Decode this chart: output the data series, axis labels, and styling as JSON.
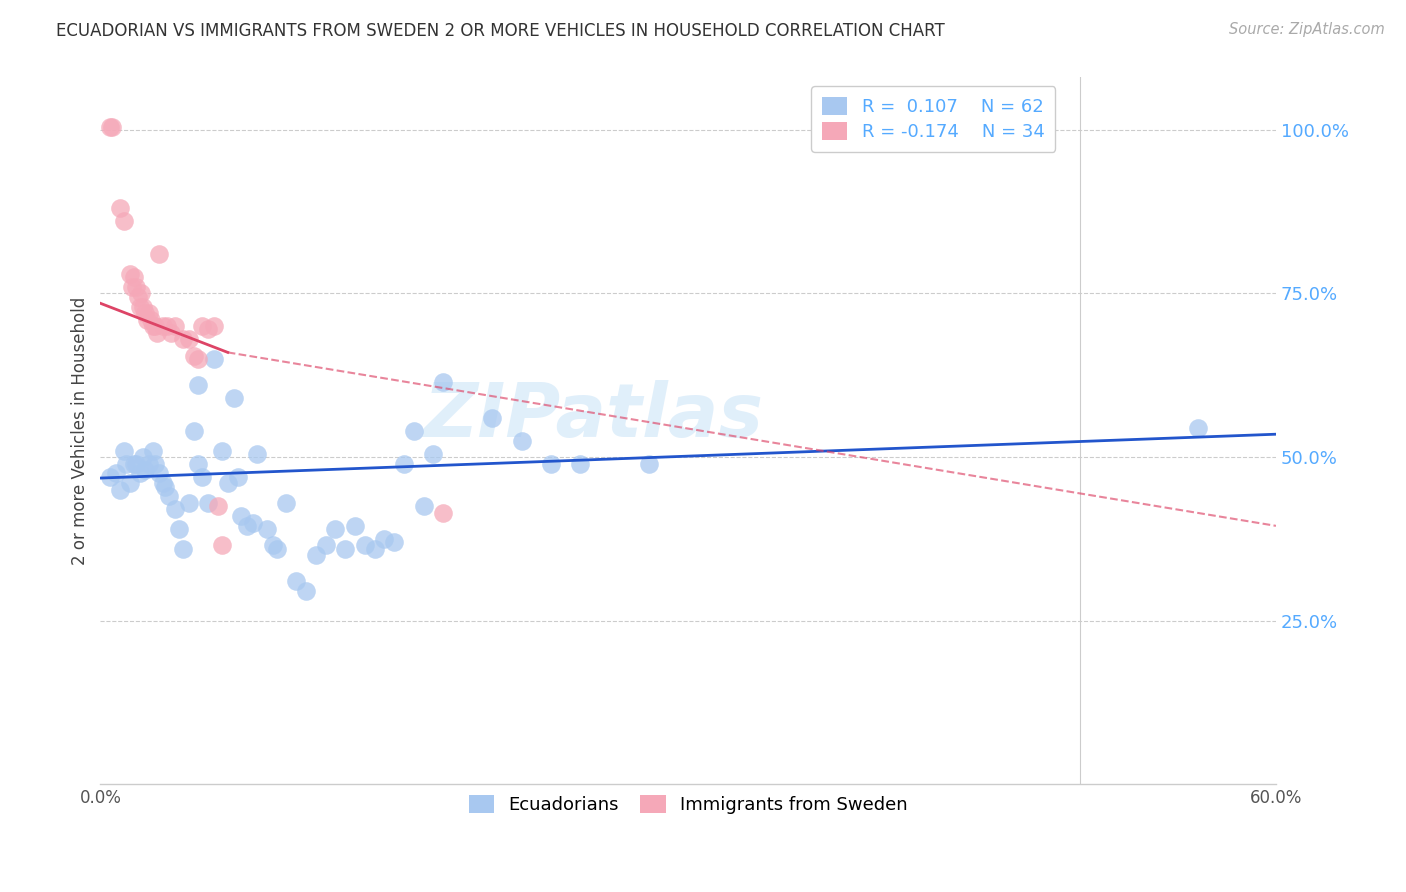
{
  "title": "ECUADORIAN VS IMMIGRANTS FROM SWEDEN 2 OR MORE VEHICLES IN HOUSEHOLD CORRELATION CHART",
  "source": "Source: ZipAtlas.com",
  "ylabel": "2 or more Vehicles in Household",
  "watermark": "ZIPatlas",
  "xlim": [
    0.0,
    0.6
  ],
  "ylim": [
    0.0,
    1.08
  ],
  "yticks": [
    0.0,
    0.25,
    0.5,
    0.75,
    1.0
  ],
  "ytick_labels": [
    "",
    "25.0%",
    "50.0%",
    "75.0%",
    "100.0%"
  ],
  "xticks": [
    0.0,
    0.1,
    0.2,
    0.3,
    0.4,
    0.5,
    0.6
  ],
  "xtick_labels": [
    "0.0%",
    "",
    "",
    "",
    "",
    "",
    "60.0%"
  ],
  "blue_color": "#A8C8F0",
  "pink_color": "#F5A8B8",
  "blue_line_color": "#2255CC",
  "pink_line_color": "#DD4466",
  "grid_color": "#CCCCCC",
  "right_tick_color": "#55AAFF",
  "blue_scatter": [
    [
      0.005,
      0.47
    ],
    [
      0.008,
      0.475
    ],
    [
      0.01,
      0.45
    ],
    [
      0.012,
      0.51
    ],
    [
      0.013,
      0.49
    ],
    [
      0.015,
      0.46
    ],
    [
      0.017,
      0.49
    ],
    [
      0.018,
      0.49
    ],
    [
      0.02,
      0.475
    ],
    [
      0.022,
      0.5
    ],
    [
      0.023,
      0.48
    ],
    [
      0.025,
      0.49
    ],
    [
      0.027,
      0.51
    ],
    [
      0.028,
      0.49
    ],
    [
      0.03,
      0.475
    ],
    [
      0.032,
      0.46
    ],
    [
      0.033,
      0.455
    ],
    [
      0.035,
      0.44
    ],
    [
      0.038,
      0.42
    ],
    [
      0.04,
      0.39
    ],
    [
      0.042,
      0.36
    ],
    [
      0.045,
      0.43
    ],
    [
      0.048,
      0.54
    ],
    [
      0.05,
      0.61
    ],
    [
      0.05,
      0.49
    ],
    [
      0.052,
      0.47
    ],
    [
      0.055,
      0.43
    ],
    [
      0.058,
      0.65
    ],
    [
      0.062,
      0.51
    ],
    [
      0.065,
      0.46
    ],
    [
      0.068,
      0.59
    ],
    [
      0.07,
      0.47
    ],
    [
      0.072,
      0.41
    ],
    [
      0.075,
      0.395
    ],
    [
      0.078,
      0.4
    ],
    [
      0.08,
      0.505
    ],
    [
      0.085,
      0.39
    ],
    [
      0.088,
      0.365
    ],
    [
      0.09,
      0.36
    ],
    [
      0.095,
      0.43
    ],
    [
      0.1,
      0.31
    ],
    [
      0.105,
      0.295
    ],
    [
      0.11,
      0.35
    ],
    [
      0.115,
      0.365
    ],
    [
      0.12,
      0.39
    ],
    [
      0.125,
      0.36
    ],
    [
      0.13,
      0.395
    ],
    [
      0.135,
      0.365
    ],
    [
      0.14,
      0.36
    ],
    [
      0.145,
      0.375
    ],
    [
      0.15,
      0.37
    ],
    [
      0.155,
      0.49
    ],
    [
      0.16,
      0.54
    ],
    [
      0.165,
      0.425
    ],
    [
      0.17,
      0.505
    ],
    [
      0.175,
      0.615
    ],
    [
      0.2,
      0.56
    ],
    [
      0.215,
      0.525
    ],
    [
      0.23,
      0.49
    ],
    [
      0.245,
      0.49
    ],
    [
      0.28,
      0.49
    ],
    [
      0.56,
      0.545
    ]
  ],
  "pink_scatter": [
    [
      0.005,
      1.005
    ],
    [
      0.006,
      1.005
    ],
    [
      0.01,
      0.88
    ],
    [
      0.012,
      0.86
    ],
    [
      0.015,
      0.78
    ],
    [
      0.016,
      0.76
    ],
    [
      0.017,
      0.775
    ],
    [
      0.018,
      0.76
    ],
    [
      0.019,
      0.745
    ],
    [
      0.02,
      0.73
    ],
    [
      0.021,
      0.75
    ],
    [
      0.022,
      0.73
    ],
    [
      0.023,
      0.72
    ],
    [
      0.024,
      0.71
    ],
    [
      0.025,
      0.72
    ],
    [
      0.026,
      0.71
    ],
    [
      0.027,
      0.7
    ],
    [
      0.028,
      0.7
    ],
    [
      0.029,
      0.69
    ],
    [
      0.03,
      0.81
    ],
    [
      0.032,
      0.7
    ],
    [
      0.034,
      0.7
    ],
    [
      0.036,
      0.69
    ],
    [
      0.038,
      0.7
    ],
    [
      0.042,
      0.68
    ],
    [
      0.045,
      0.68
    ],
    [
      0.048,
      0.655
    ],
    [
      0.05,
      0.65
    ],
    [
      0.052,
      0.7
    ],
    [
      0.055,
      0.695
    ],
    [
      0.058,
      0.7
    ],
    [
      0.06,
      0.425
    ],
    [
      0.062,
      0.365
    ],
    [
      0.175,
      0.415
    ]
  ],
  "blue_trend": [
    0.0,
    0.6,
    0.468,
    0.535
  ],
  "pink_trend_solid": [
    0.0,
    0.065,
    0.735,
    0.66
  ],
  "pink_trend_dash": [
    0.065,
    0.6,
    0.66,
    0.395
  ]
}
